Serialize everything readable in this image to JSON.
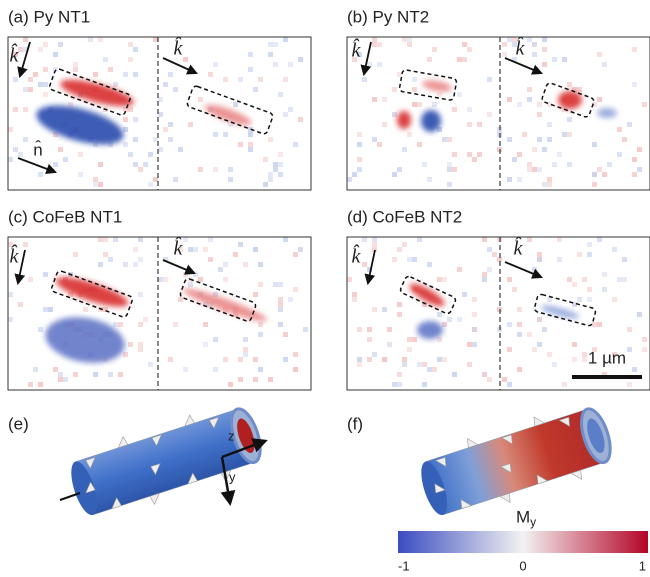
{
  "panels": [
    {
      "label": "(a) Py NT1",
      "k_labels": [
        "k̂",
        "k̂"
      ],
      "n_label": "n̂"
    },
    {
      "label": "(b) Py NT2",
      "k_labels": [
        "k̂",
        "k̂"
      ]
    },
    {
      "label": "(c) CoFeB NT1",
      "k_labels": [
        "k̂",
        "k̂"
      ]
    },
    {
      "label": "(d) CoFeB NT2",
      "k_labels": [
        "k̂",
        "k̂"
      ],
      "scale_bar": "1 µm"
    }
  ],
  "simulations": [
    {
      "label": "(e)",
      "axis_labels": [
        "z",
        "y"
      ]
    },
    {
      "label": "(f)"
    }
  ],
  "colorbar": {
    "label": "M",
    "label_sub": "y",
    "ticks": [
      "-1",
      "0",
      "1"
    ]
  }
}
